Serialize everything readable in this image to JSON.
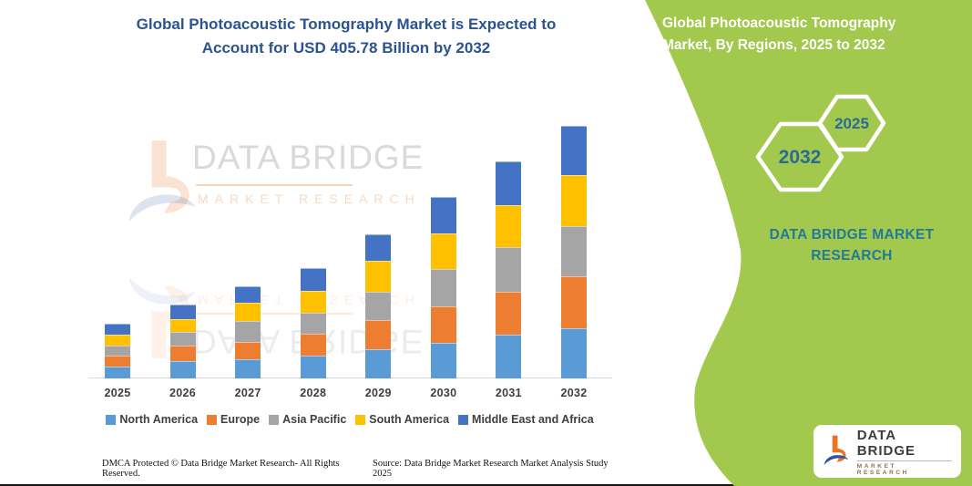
{
  "left_panel": {
    "title": "Global Photoacoustic Tomography Market is Expected to Account for USD 405.78 Billion by 2032",
    "footer_left": "DMCA Protected © Data Bridge Market Research-  All Rights Reserved.",
    "footer_right": "Source: Data Bridge Market Research  Market Analysis Study 2025"
  },
  "watermark": {
    "brand": "DATA BRIDGE",
    "sub": "MARKET RESEARCH"
  },
  "right_panel": {
    "title": "Global Photoacoustic Tomography Market, By Regions, 2025 to 2032",
    "background_color": "#a2c94d",
    "accent_teal": "#217a99",
    "badges": [
      {
        "label": "2032"
      },
      {
        "label": "2025"
      }
    ],
    "brand_text": "DATA BRIDGE MARKET RESEARCH",
    "logo": {
      "name": "DATA BRIDGE",
      "tagline": "MARKET RESEARCH"
    }
  },
  "chart_data": {
    "type": "bar",
    "stacked": true,
    "title": "Global Photoacoustic Tomography Market, By Regions, 2025 to 2032",
    "unit": "USD Billion",
    "categories": [
      "2025",
      "2026",
      "2027",
      "2028",
      "2029",
      "2030",
      "2031",
      "2032"
    ],
    "series": [
      {
        "name": "North America",
        "color": "#5b9bd5",
        "values": [
          19.0,
          27.4,
          31.2,
          36.2,
          47.3,
          57.6,
          69.9,
          81.0
        ]
      },
      {
        "name": "Europe",
        "color": "#ed7d31",
        "values": [
          17.1,
          25.3,
          26.8,
          35.2,
          46.9,
          58.6,
          69.3,
          83.1
        ]
      },
      {
        "name": "Asia Pacific",
        "color": "#a5a5a5",
        "values": [
          17.1,
          21.5,
          34.1,
          34.1,
          45.4,
          60.1,
          72.2,
          80.1
        ]
      },
      {
        "name": "South America",
        "color": "#ffc000",
        "values": [
          17.1,
          20.5,
          29.3,
          35.6,
          49.8,
          56.1,
          67.4,
          82.0
        ]
      },
      {
        "name": "Middle East and Africa",
        "color": "#4472c4",
        "values": [
          17.6,
          23.4,
          26.8,
          35.6,
          42.5,
          58.6,
          69.3,
          79.6
        ]
      }
    ],
    "totals": [
      87.9,
      118.1,
      148.2,
      176.7,
      231.9,
      291.0,
      348.1,
      405.78
    ],
    "highlight_value": "USD 405.78 Billion by 2032",
    "legend_position": "bottom",
    "axes": {
      "x_visible": true,
      "y_visible": false,
      "ylim": [
        0,
        420
      ]
    },
    "grid": false
  }
}
